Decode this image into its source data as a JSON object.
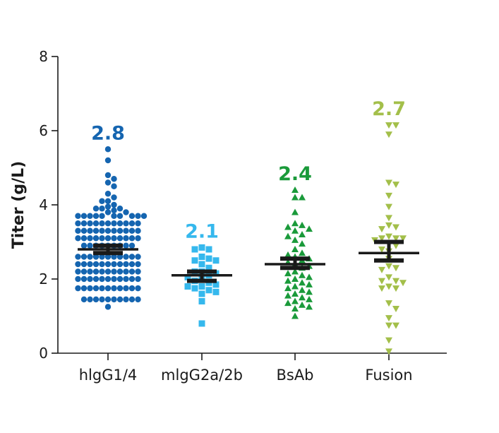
{
  "chart_data": {
    "type": "scatter",
    "subtype": "dot-plot with mean and SEM",
    "title": "",
    "xlabel": "",
    "ylabel": "Titer (g/L)",
    "ylim": [
      0,
      8
    ],
    "yticks": [
      0,
      2,
      4,
      6,
      8
    ],
    "grid": false,
    "legend": "none",
    "categories": [
      "hlgG1/4",
      "mlgG2a/2b",
      "BsAb",
      "Fusion"
    ],
    "series": [
      {
        "name": "hlgG1/4",
        "marker": "circle",
        "color": "#1565b0",
        "mean": 2.8,
        "mean_label": "2.8",
        "sem": [
          2.7,
          2.9
        ],
        "values": [
          5.5,
          5.2,
          4.8,
          4.7,
          4.6,
          4.5,
          4.3,
          4.2,
          4.1,
          4.1,
          4.0,
          3.95,
          3.9,
          3.9,
          3.9,
          3.85,
          3.8,
          3.8,
          3.7,
          3.7,
          3.7,
          3.7,
          3.7,
          3.7,
          3.7,
          3.7,
          3.7,
          3.7,
          3.5,
          3.5,
          3.5,
          3.5,
          3.5,
          3.5,
          3.5,
          3.5,
          3.5,
          3.5,
          3.5,
          3.3,
          3.3,
          3.3,
          3.3,
          3.3,
          3.3,
          3.3,
          3.3,
          3.3,
          3.3,
          3.3,
          3.1,
          3.1,
          3.1,
          3.1,
          3.1,
          3.1,
          3.1,
          3.1,
          3.1,
          3.1,
          3.1,
          2.9,
          2.9,
          2.9,
          2.9,
          2.9,
          2.9,
          2.9,
          2.9,
          2.9,
          2.6,
          2.6,
          2.6,
          2.6,
          2.6,
          2.6,
          2.6,
          2.6,
          2.6,
          2.6,
          2.6,
          2.4,
          2.4,
          2.4,
          2.4,
          2.4,
          2.4,
          2.4,
          2.4,
          2.4,
          2.4,
          2.4,
          2.2,
          2.2,
          2.2,
          2.2,
          2.2,
          2.2,
          2.2,
          2.2,
          2.2,
          2.2,
          2.2,
          2.0,
          2.0,
          2.0,
          2.0,
          2.0,
          2.0,
          2.0,
          2.0,
          2.0,
          2.0,
          2.0,
          1.75,
          1.75,
          1.75,
          1.75,
          1.75,
          1.75,
          1.75,
          1.75,
          1.75,
          1.75,
          1.75,
          1.45,
          1.45,
          1.45,
          1.45,
          1.45,
          1.45,
          1.45,
          1.45,
          1.45,
          1.45,
          1.25
        ]
      },
      {
        "name": "mlgG2a/2b",
        "marker": "square",
        "color": "#35b8ed",
        "mean": 2.1,
        "mean_label": "2.1",
        "sem": [
          1.95,
          2.2
        ],
        "values": [
          2.85,
          2.8,
          2.8,
          2.6,
          2.55,
          2.5,
          2.5,
          2.4,
          2.3,
          2.2,
          2.2,
          2.15,
          2.1,
          2.05,
          2.0,
          1.95,
          1.9,
          1.85,
          1.8,
          1.8,
          1.75,
          1.7,
          1.65,
          1.6,
          1.4,
          0.8
        ]
      },
      {
        "name": "BsAb",
        "marker": "triangle-up",
        "color": "#1a9a3a",
        "mean": 2.4,
        "mean_label": "2.4",
        "sem": [
          2.3,
          2.55
        ],
        "values": [
          4.4,
          4.2,
          4.2,
          3.8,
          3.5,
          3.45,
          3.4,
          3.35,
          3.3,
          3.2,
          3.15,
          3.05,
          2.95,
          2.8,
          2.7,
          2.65,
          2.6,
          2.55,
          2.5,
          2.45,
          2.4,
          2.35,
          2.3,
          2.2,
          2.15,
          2.1,
          2.05,
          2.0,
          1.95,
          1.9,
          1.85,
          1.8,
          1.75,
          1.7,
          1.65,
          1.6,
          1.55,
          1.5,
          1.45,
          1.4,
          1.35,
          1.3,
          1.25,
          1.2,
          1.0
        ]
      },
      {
        "name": "Fusion",
        "marker": "triangle-down",
        "color": "#a3bf4a",
        "mean": 2.7,
        "mean_label": "2.7",
        "sem": [
          2.5,
          3.0
        ],
        "values": [
          6.15,
          6.15,
          5.9,
          4.6,
          4.55,
          4.25,
          3.95,
          3.65,
          3.45,
          3.4,
          3.35,
          3.15,
          3.1,
          3.1,
          3.1,
          3.05,
          2.95,
          2.9,
          2.8,
          2.75,
          2.55,
          2.35,
          2.3,
          2.25,
          2.05,
          1.95,
          1.95,
          1.9,
          1.8,
          1.75,
          1.75,
          1.35,
          1.2,
          0.95,
          0.75,
          0.75,
          0.35,
          0.05
        ]
      }
    ]
  }
}
